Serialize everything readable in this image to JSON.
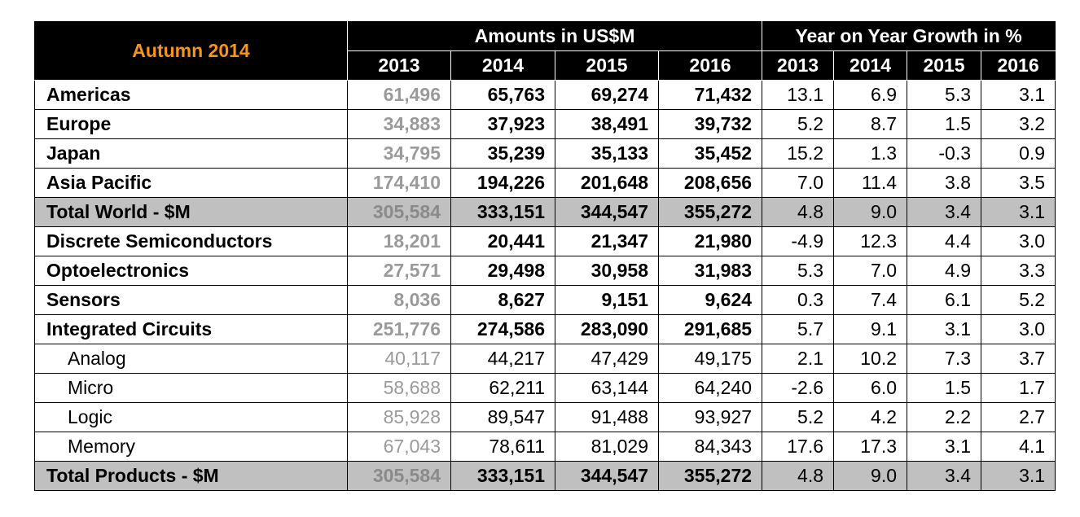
{
  "header": {
    "corner": "Autumn 2014",
    "amounts_title": "Amounts in US$M",
    "growth_title": "Year on Year Growth in %",
    "amount_years": [
      "2013",
      "2014",
      "2015",
      "2016"
    ],
    "growth_years": [
      "2013",
      "2014",
      "2015",
      "2016"
    ]
  },
  "colors": {
    "corner_text": "#f7941d",
    "header_bg": "#000000",
    "total_row_bg": "#c0c0c0",
    "col_2013_text": "#9a9a9a"
  },
  "rows": [
    {
      "label": "Americas",
      "type": "main",
      "amounts": [
        "61,496",
        "65,763",
        "69,274",
        "71,432"
      ],
      "growth": [
        "13.1",
        "6.9",
        "5.3",
        "3.1"
      ]
    },
    {
      "label": "Europe",
      "type": "main",
      "amounts": [
        "34,883",
        "37,923",
        "38,491",
        "39,732"
      ],
      "growth": [
        "5.2",
        "8.7",
        "1.5",
        "3.2"
      ]
    },
    {
      "label": "Japan",
      "type": "main",
      "amounts": [
        "34,795",
        "35,239",
        "35,133",
        "35,452"
      ],
      "growth": [
        "15.2",
        "1.3",
        "-0.3",
        "0.9"
      ]
    },
    {
      "label": "Asia Pacific",
      "type": "main",
      "amounts": [
        "174,410",
        "194,226",
        "201,648",
        "208,656"
      ],
      "growth": [
        "7.0",
        "11.4",
        "3.8",
        "3.5"
      ]
    },
    {
      "label": "Total World - $M",
      "type": "total",
      "amounts": [
        "305,584",
        "333,151",
        "344,547",
        "355,272"
      ],
      "growth": [
        "4.8",
        "9.0",
        "3.4",
        "3.1"
      ]
    },
    {
      "label": "Discrete Semiconductors",
      "type": "main",
      "amounts": [
        "18,201",
        "20,441",
        "21,347",
        "21,980"
      ],
      "growth": [
        "-4.9",
        "12.3",
        "4.4",
        "3.0"
      ]
    },
    {
      "label": "Optoelectronics",
      "type": "main",
      "amounts": [
        "27,571",
        "29,498",
        "30,958",
        "31,983"
      ],
      "growth": [
        "5.3",
        "7.0",
        "4.9",
        "3.3"
      ]
    },
    {
      "label": "Sensors",
      "type": "main",
      "amounts": [
        "8,036",
        "8,627",
        "9,151",
        "9,624"
      ],
      "growth": [
        "0.3",
        "7.4",
        "6.1",
        "5.2"
      ]
    },
    {
      "label": "Integrated Circuits",
      "type": "main",
      "amounts": [
        "251,776",
        "274,586",
        "283,090",
        "291,685"
      ],
      "growth": [
        "5.7",
        "9.1",
        "3.1",
        "3.0"
      ]
    },
    {
      "label": "Analog",
      "type": "sub",
      "amounts": [
        "40,117",
        "44,217",
        "47,429",
        "49,175"
      ],
      "growth": [
        "2.1",
        "10.2",
        "7.3",
        "3.7"
      ]
    },
    {
      "label": "Micro",
      "type": "sub",
      "amounts": [
        "58,688",
        "62,211",
        "63,144",
        "64,240"
      ],
      "growth": [
        "-2.6",
        "6.0",
        "1.5",
        "1.7"
      ]
    },
    {
      "label": "Logic",
      "type": "sub",
      "amounts": [
        "85,928",
        "89,547",
        "91,488",
        "93,927"
      ],
      "growth": [
        "5.2",
        "4.2",
        "2.2",
        "2.7"
      ]
    },
    {
      "label": "Memory",
      "type": "sub",
      "amounts": [
        "67,043",
        "78,611",
        "81,029",
        "84,343"
      ],
      "growth": [
        "17.6",
        "17.3",
        "3.1",
        "4.1"
      ]
    },
    {
      "label": "Total Products - $M",
      "type": "total",
      "amounts": [
        "305,584",
        "333,151",
        "344,547",
        "355,272"
      ],
      "growth": [
        "4.8",
        "9.0",
        "3.4",
        "3.1"
      ]
    }
  ]
}
